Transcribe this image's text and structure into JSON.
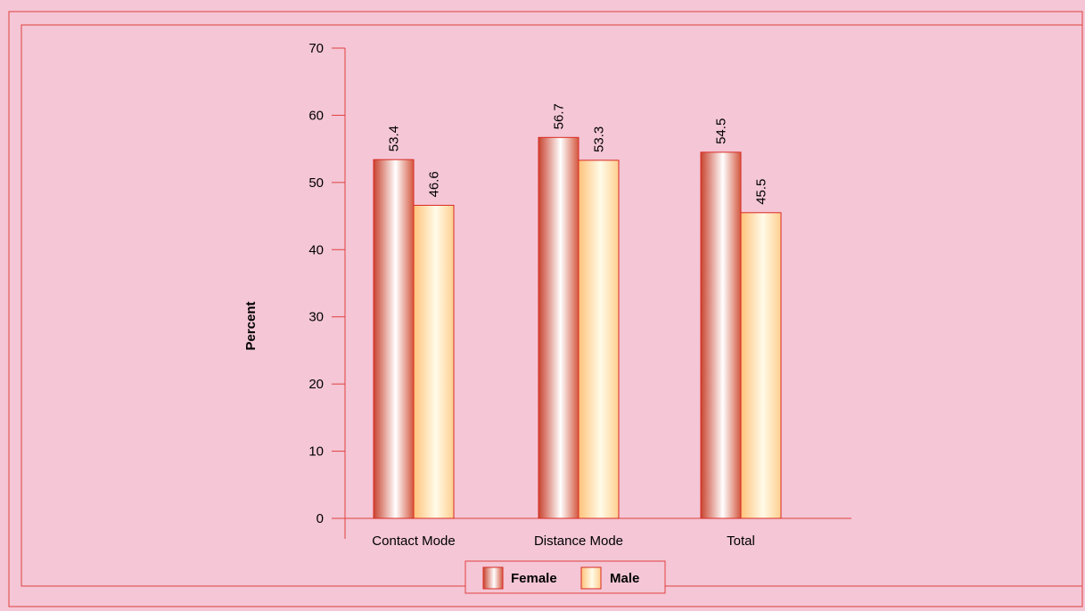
{
  "chart_data": {
    "type": "bar",
    "title": "",
    "xlabel": "",
    "ylabel": "Percent",
    "ylim": [
      0,
      70
    ],
    "yticks": [
      0,
      10,
      20,
      30,
      40,
      50,
      60,
      70
    ],
    "categories": [
      "Contact Mode",
      "Distance Mode",
      "Total"
    ],
    "series": [
      {
        "name": "Female",
        "values": [
          53.4,
          56.7,
          54.5
        ]
      },
      {
        "name": "Male",
        "values": [
          46.6,
          53.3,
          45.5
        ]
      }
    ],
    "data_labels": [
      [
        "53.4",
        "56.7",
        "54.5"
      ],
      [
        "46.6",
        "53.3",
        "45.5"
      ]
    ],
    "legend": {
      "placement": "bottom-center",
      "entries": [
        "Female",
        "Male"
      ]
    },
    "grid": false
  },
  "colors": {
    "background": "#f4c6d6",
    "border": "#e0413f",
    "axis": "#e0413f",
    "female_dark": "#c8432f",
    "female_light": "#ffffff",
    "male_dark": "#ffc27a",
    "male_light": "#fffbe8",
    "bar_stroke": "#d92a22"
  }
}
